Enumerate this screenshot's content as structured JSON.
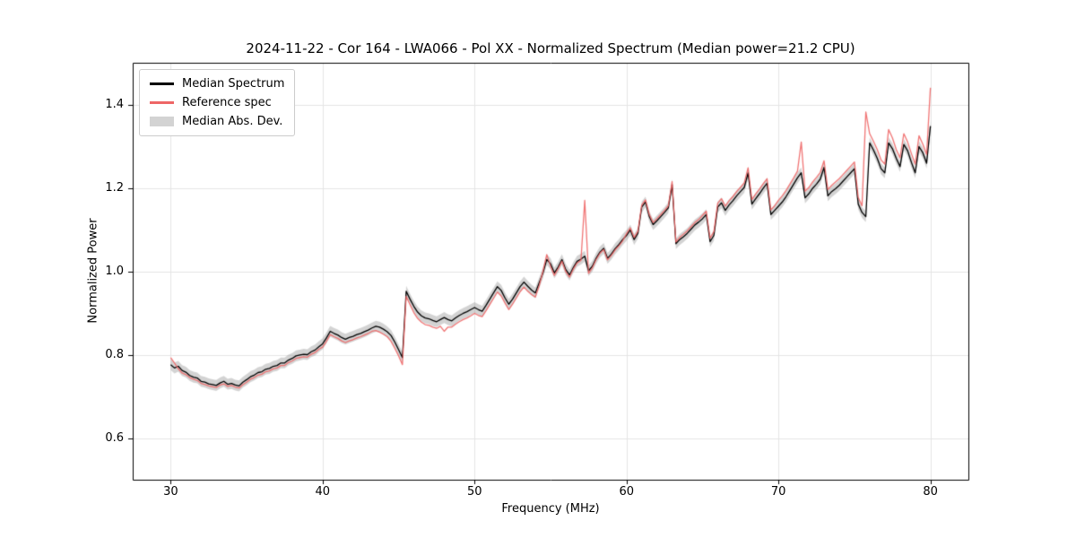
{
  "chart_data": {
    "type": "line",
    "title": "2024-11-22 - Cor 164 - LWA066 - Pol XX - Normalized Spectrum (Median power=21.2 CPU)",
    "xlabel": "Frequency (MHz)",
    "ylabel": "Normalized Power",
    "xlim": [
      27.5,
      82.5
    ],
    "ylim": [
      0.5,
      1.5
    ],
    "xticks": [
      30,
      40,
      50,
      60,
      70,
      80
    ],
    "yticks": [
      0.6,
      0.8,
      1.0,
      1.2,
      1.4
    ],
    "grid": true,
    "grid_color": "#e5e5e5",
    "legend_position": "upper left",
    "x_start": 30.0,
    "x_step": 0.25,
    "series": [
      {
        "name": "Median Spectrum",
        "color": "#000000",
        "values": [
          0.776,
          0.768,
          0.772,
          0.762,
          0.758,
          0.75,
          0.746,
          0.744,
          0.736,
          0.734,
          0.73,
          0.728,
          0.726,
          0.732,
          0.736,
          0.729,
          0.731,
          0.727,
          0.725,
          0.734,
          0.74,
          0.747,
          0.751,
          0.757,
          0.759,
          0.765,
          0.767,
          0.772,
          0.774,
          0.78,
          0.78,
          0.787,
          0.791,
          0.797,
          0.799,
          0.801,
          0.8,
          0.807,
          0.811,
          0.819,
          0.826,
          0.84,
          0.856,
          0.851,
          0.847,
          0.841,
          0.837,
          0.841,
          0.844,
          0.848,
          0.851,
          0.855,
          0.859,
          0.864,
          0.868,
          0.866,
          0.861,
          0.855,
          0.846,
          0.83,
          0.812,
          0.793,
          0.952,
          0.933,
          0.916,
          0.902,
          0.893,
          0.888,
          0.886,
          0.882,
          0.879,
          0.884,
          0.889,
          0.884,
          0.881,
          0.888,
          0.894,
          0.899,
          0.903,
          0.908,
          0.913,
          0.908,
          0.904,
          0.918,
          0.933,
          0.948,
          0.963,
          0.954,
          0.936,
          0.921,
          0.933,
          0.948,
          0.963,
          0.974,
          0.964,
          0.955,
          0.948,
          0.972,
          0.996,
          1.028,
          1.018,
          0.996,
          1.01,
          1.028,
          1.004,
          0.991,
          1.009,
          1.024,
          1.029,
          1.036,
          1.001,
          1.012,
          1.031,
          1.046,
          1.055,
          1.031,
          1.041,
          1.054,
          1.064,
          1.076,
          1.086,
          1.099,
          1.076,
          1.091,
          1.154,
          1.166,
          1.131,
          1.112,
          1.121,
          1.131,
          1.141,
          1.152,
          1.208,
          1.066,
          1.076,
          1.083,
          1.091,
          1.101,
          1.111,
          1.118,
          1.126,
          1.136,
          1.071,
          1.086,
          1.154,
          1.164,
          1.146,
          1.159,
          1.169,
          1.181,
          1.191,
          1.201,
          1.236,
          1.161,
          1.174,
          1.186,
          1.199,
          1.211,
          1.136,
          1.146,
          1.156,
          1.166,
          1.179,
          1.194,
          1.209,
          1.224,
          1.236,
          1.176,
          1.186,
          1.199,
          1.209,
          1.221,
          1.249,
          1.181,
          1.191,
          1.198,
          1.206,
          1.216,
          1.226,
          1.236,
          1.246,
          1.161,
          1.141,
          1.131,
          1.308,
          1.291,
          1.271,
          1.246,
          1.236,
          1.308,
          1.294,
          1.271,
          1.251,
          1.304,
          1.289,
          1.261,
          1.236,
          1.299,
          1.284,
          1.259,
          1.348
        ]
      },
      {
        "name": "Reference spec",
        "color": "#ee6666",
        "values": [
          0.793,
          0.78,
          0.766,
          0.756,
          0.752,
          0.745,
          0.741,
          0.738,
          0.731,
          0.728,
          0.725,
          0.723,
          0.721,
          0.727,
          0.73,
          0.724,
          0.726,
          0.722,
          0.72,
          0.728,
          0.734,
          0.741,
          0.745,
          0.751,
          0.753,
          0.759,
          0.761,
          0.766,
          0.768,
          0.774,
          0.774,
          0.781,
          0.785,
          0.791,
          0.793,
          0.795,
          0.794,
          0.801,
          0.805,
          0.813,
          0.818,
          0.832,
          0.848,
          0.843,
          0.839,
          0.833,
          0.829,
          0.833,
          0.836,
          0.84,
          0.843,
          0.847,
          0.851,
          0.856,
          0.858,
          0.854,
          0.849,
          0.843,
          0.832,
          0.815,
          0.797,
          0.776,
          0.94,
          0.92,
          0.901,
          0.887,
          0.878,
          0.872,
          0.87,
          0.866,
          0.863,
          0.868,
          0.856,
          0.866,
          0.866,
          0.873,
          0.879,
          0.884,
          0.888,
          0.893,
          0.899,
          0.894,
          0.891,
          0.905,
          0.92,
          0.935,
          0.95,
          0.941,
          0.924,
          0.908,
          0.921,
          0.936,
          0.951,
          0.962,
          0.952,
          0.944,
          0.938,
          0.965,
          1.0,
          1.04,
          1.012,
          0.99,
          1.006,
          1.024,
          0.999,
          0.986,
          1.005,
          1.02,
          1.026,
          1.17,
          0.995,
          1.008,
          1.028,
          1.043,
          1.052,
          1.027,
          1.038,
          1.051,
          1.061,
          1.073,
          1.09,
          1.104,
          1.081,
          1.096,
          1.159,
          1.171,
          1.136,
          1.117,
          1.126,
          1.136,
          1.146,
          1.157,
          1.215,
          1.07,
          1.081,
          1.089,
          1.097,
          1.107,
          1.117,
          1.124,
          1.134,
          1.144,
          1.079,
          1.095,
          1.163,
          1.174,
          1.156,
          1.169,
          1.179,
          1.191,
          1.201,
          1.212,
          1.248,
          1.172,
          1.185,
          1.197,
          1.21,
          1.222,
          1.147,
          1.157,
          1.17,
          1.181,
          1.194,
          1.209,
          1.224,
          1.24,
          1.31,
          1.192,
          1.201,
          1.214,
          1.225,
          1.237,
          1.265,
          1.196,
          1.206,
          1.214,
          1.222,
          1.232,
          1.242,
          1.252,
          1.262,
          1.177,
          1.157,
          1.382,
          1.33,
          1.312,
          1.292,
          1.267,
          1.257,
          1.34,
          1.32,
          1.292,
          1.272,
          1.33,
          1.31,
          1.282,
          1.257,
          1.325,
          1.305,
          1.28,
          1.44
        ]
      },
      {
        "name": "Median Abs. Dev.",
        "type": "band",
        "around": "Median Spectrum",
        "halfwidth": 0.013,
        "color": "#9e9e9e",
        "alpha": 0.45
      }
    ]
  }
}
